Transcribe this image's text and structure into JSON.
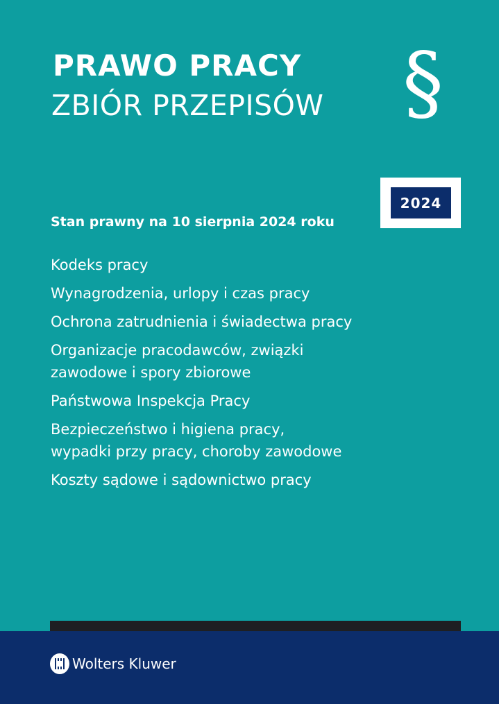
{
  "cover": {
    "title": "PRAWO PRACY",
    "subtitle": "ZBIÓR PRZEPISÓW",
    "symbol": "§",
    "year": "2024",
    "legal_status": "Stan prawny na 10 sierpnia 2024 roku",
    "contents": [
      "Kodeks pracy",
      "Wynagrodzenia, urlopy i czas pracy",
      "Ochrona zatrudnienia i świadectwa pracy",
      "Organizacje pracodawców, związki\nzawodowe i spory zbiorowe",
      "Państwowa Inspekcja Pracy",
      "Bezpieczeństwo i higiena pracy,\nwypadki przy pracy, choroby zawodowe",
      "Koszty sądowe i sądownictwo pracy"
    ]
  },
  "publisher": {
    "name": "Wolters Kluwer",
    "icon": "wolters-kluwer-logo-icon"
  },
  "colors": {
    "background": "#0d9ea0",
    "navy": "#0c2d6b",
    "bar": "#1e1f22"
  }
}
